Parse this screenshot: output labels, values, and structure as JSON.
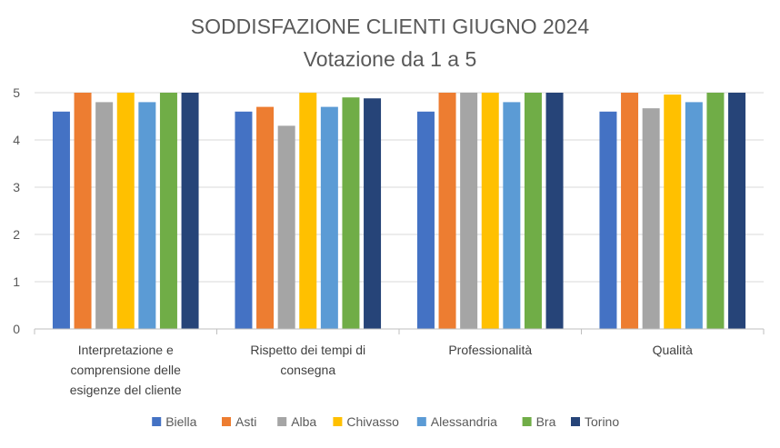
{
  "chart_data": {
    "type": "bar",
    "title": "SODDISFAZIONE CLIENTI GIUGNO 2024",
    "subtitle": "Votazione da 1 a 5",
    "xlabel": "",
    "ylabel": "",
    "ylim": [
      0,
      5
    ],
    "yticks": [
      "0",
      "1",
      "2",
      "3",
      "4",
      "5"
    ],
    "grid": true,
    "legend_position": "bottom",
    "categories": [
      [
        "Interpretazione e",
        "comprensione delle",
        "esigenze del cliente"
      ],
      [
        "Rispetto dei tempi di",
        "consegna"
      ],
      [
        "Professionalità"
      ],
      [
        "Qualità"
      ]
    ],
    "series": [
      {
        "name": "Biella",
        "color": "#4472C4",
        "values": [
          4.6,
          4.6,
          4.6,
          4.6
        ]
      },
      {
        "name": "Asti",
        "color": "#ED7D31",
        "values": [
          5.0,
          4.7,
          5.0,
          5.0
        ]
      },
      {
        "name": "Alba",
        "color": "#A5A5A5",
        "values": [
          4.8,
          4.3,
          5.0,
          4.67
        ]
      },
      {
        "name": "Chivasso",
        "color": "#FFC000",
        "values": [
          5.0,
          5.0,
          5.0,
          4.96
        ]
      },
      {
        "name": "Alessandria",
        "color": "#5B9BD5",
        "values": [
          4.8,
          4.7,
          4.8,
          4.8
        ]
      },
      {
        "name": "Bra",
        "color": "#70AD47",
        "values": [
          5.0,
          4.9,
          5.0,
          5.0
        ]
      },
      {
        "name": "Torino",
        "color": "#264478",
        "values": [
          5.0,
          4.88,
          5.0,
          5.0
        ]
      }
    ]
  }
}
